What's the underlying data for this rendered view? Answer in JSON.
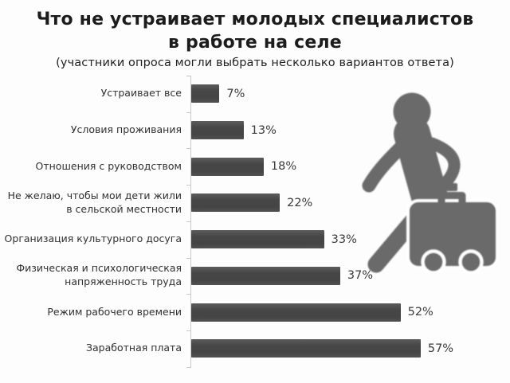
{
  "title": {
    "line1": "Что не устраивает молодых специалистов",
    "line2": "в работе на селе"
  },
  "subtitle": "(участники опроса могли выбрать несколько вариантов ответа)",
  "chart_data": {
    "type": "bar",
    "orientation": "horizontal",
    "title": "Что не устраивает молодых специалистов в работе на селе",
    "subtitle": "(участники опроса могли выбрать несколько вариантов ответа)",
    "categories": [
      "Устраивает все",
      "Условия проживания",
      "Отношения с руководством",
      "Не желаю, чтобы мои дети жили\nв сельской местности",
      "Организация культурного досуга",
      "Физическая и психологическая\nнапряженность труда",
      "Режим рабочего времени",
      "Заработная плата"
    ],
    "values": [
      7,
      13,
      18,
      22,
      33,
      37,
      52,
      57
    ],
    "value_labels": [
      "7%",
      "13%",
      "18%",
      "22%",
      "33%",
      "37%",
      "52%",
      "57%"
    ],
    "unit": "%",
    "xlim": [
      0,
      60
    ],
    "grid": false,
    "legend": false,
    "bar_color": "#4a4a4a",
    "axis_color": "#c9c9c9"
  },
  "illustration": {
    "name": "person-with-rolling-suitcase-silhouette",
    "color": "#6a6a6a"
  },
  "colors": {
    "background": "#fdfdfd",
    "title_text": "#1c1c1c",
    "label_text": "#303030",
    "value_text": "#3a3a3a"
  }
}
